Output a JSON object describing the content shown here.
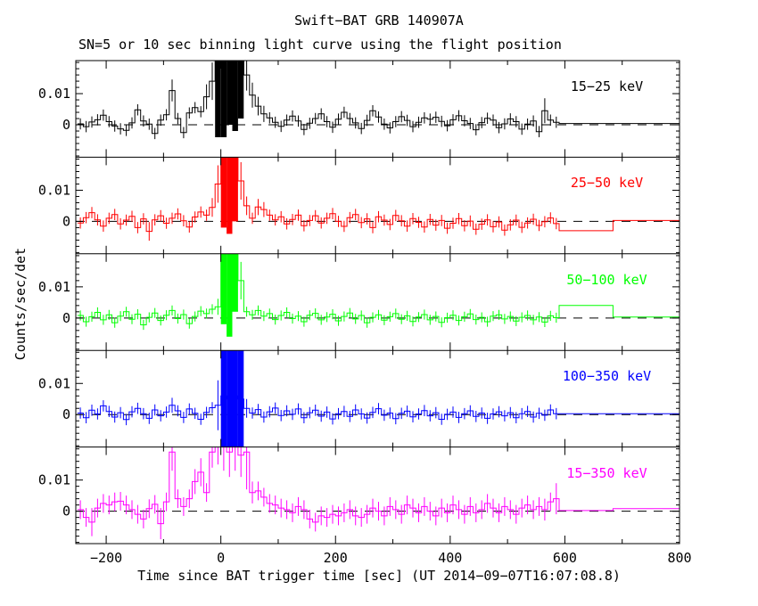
{
  "chart_data": {
    "type": "line",
    "title": "Swift−BAT GRB 140907A",
    "subtitle": "SN=5 or 10 sec binning light curve using the flight position",
    "xlabel": "Time since BAT trigger time [sec] (UT 2014−09−07T16:07:08.8)",
    "ylabel": "Counts/sec/det",
    "xlim": [
      -253,
      800
    ],
    "ylim": [
      -0.0104,
      0.0206
    ],
    "y_unit": 0.001,
    "xticks": [
      -200,
      0,
      200,
      400,
      600,
      800
    ],
    "xtick_labels": [
      "−200",
      "0",
      "200",
      "400",
      "600",
      "800"
    ],
    "xtick_minor_step": 100,
    "yticks": [
      {
        "v": 0,
        "label": "0"
      },
      {
        "v": 0.01,
        "label": "0.01"
      }
    ],
    "ytick_minor_step": 0.002,
    "grid": false,
    "legend_position": "inside-top-right-per-panel",
    "zero_line": "dashed-black",
    "panels": [
      {
        "label": "15−25 keV",
        "color": "#000000",
        "t0": -250,
        "dt": 10,
        "y": [
          0.3,
          -0.6,
          0.9,
          1.6,
          3.1,
          1.0,
          -0.4,
          -1.3,
          -1.8,
          0.6,
          4.8,
          1.2,
          0.2,
          -2.8,
          1.5,
          3.2,
          11,
          2.0,
          -2.5,
          3.8,
          5.5,
          4.2,
          9,
          14,
          30,
          30,
          30,
          30,
          30,
          16,
          9.5,
          6.0,
          3.5,
          2.2,
          0.8,
          -0.5,
          1.5,
          2.8,
          1.2,
          -1.5,
          0.5,
          2.0,
          3.5,
          1.0,
          -0.8,
          1.8,
          4.0,
          2.0,
          0.6,
          -1.2,
          1.4,
          4.5,
          2.5,
          0.2,
          -1.0,
          1.0,
          2.6,
          1.4,
          -0.6,
          0.8,
          2.2,
          1.8,
          2.4,
          1.1,
          -0.3,
          1.6,
          2.9,
          1.3,
          0.4,
          -1.6,
          0.7,
          2.1,
          1.5,
          -0.9,
          0.3,
          1.9,
          1.0,
          -1.4,
          0.2,
          1.2,
          -2.2,
          4.5,
          1.5,
          0.8
        ],
        "e_default": 1.8,
        "e_over": {
          "16": 3.5,
          "22": 4,
          "23": 6,
          "24": 34,
          "25": 34,
          "26": 30,
          "27": 32,
          "28": 28,
          "29": 5,
          "30": 4,
          "31": 3,
          "32": 2.6,
          "81": 4
        },
        "tail": [
          [
            590,
            800,
            0.4
          ]
        ]
      },
      {
        "label": "25−50 keV",
        "color": "#ff0000",
        "t0": -250,
        "dt": 10,
        "y": [
          -0.5,
          1.2,
          2.8,
          0.5,
          -1.5,
          1.0,
          2.2,
          -0.8,
          0.4,
          1.6,
          -2.0,
          0.8,
          -3.2,
          0.5,
          1.8,
          -0.6,
          1.0,
          2.4,
          0.2,
          -1.8,
          1.4,
          3.0,
          2.0,
          4.5,
          12,
          30,
          30,
          26,
          13,
          5.0,
          1.0,
          4.6,
          3.8,
          2.0,
          0.5,
          1.5,
          -0.8,
          0.6,
          2.0,
          -1.4,
          0.3,
          1.8,
          -0.5,
          1.0,
          2.5,
          0.0,
          -1.6,
          1.2,
          2.2,
          -0.4,
          0.8,
          -2.0,
          1.5,
          0.4,
          -1.0,
          1.9,
          0.2,
          -1.5,
          0.9,
          -0.3,
          -1.8,
          0.6,
          -1.2,
          0.3,
          -2.2,
          -0.6,
          0.9,
          -1.4,
          0.1,
          -2.5,
          -0.9,
          0.5,
          -1.7,
          -0.2,
          -2.8,
          -1.1,
          0.4,
          -1.9,
          -0.5,
          0.7,
          -1.3,
          -0.1,
          1.1,
          -0.7
        ],
        "e_default": 1.8,
        "e_over": {
          "12": 3,
          "23": 3,
          "24": 6,
          "25": 32,
          "26": 34,
          "27": 26,
          "28": 6,
          "29": 3,
          "31": 2.6,
          "32": 2.4
        },
        "tail": [
          [
            590,
            684,
            -3.0
          ],
          [
            684,
            800,
            0.3
          ]
        ]
      },
      {
        "label": "50−100 keV",
        "color": "#00ff00",
        "t0": -250,
        "dt": 10,
        "y": [
          0.8,
          -1.2,
          0.4,
          1.8,
          -0.6,
          1.0,
          -1.5,
          0.6,
          2.0,
          -0.4,
          1.2,
          -2.2,
          0.2,
          1.6,
          -0.8,
          0.9,
          2.4,
          -0.2,
          1.1,
          -1.8,
          0.5,
          2.2,
          1.4,
          2.8,
          3.6,
          30,
          30,
          28,
          12,
          2.0,
          1.0,
          2.4,
          0.6,
          1.4,
          -0.5,
          0.8,
          1.8,
          -0.2,
          0.6,
          -1.2,
          0.9,
          1.5,
          -0.6,
          0.3,
          1.2,
          -0.9,
          0.5,
          1.6,
          -0.3,
          0.8,
          -1.5,
          0.2,
          1.0,
          -0.7,
          0.4,
          1.4,
          -0.4,
          0.7,
          -1.1,
          0.3,
          1.1,
          -0.6,
          0.5,
          -1.4,
          0.1,
          0.9,
          -0.8,
          0.4,
          1.3,
          -0.5,
          0.2,
          -1.2,
          0.6,
          1.0,
          -0.3,
          0.5,
          -1.0,
          0.2,
          0.8,
          -0.6,
          0.3,
          -1.3,
          0.7,
          0.1
        ],
        "e_default": 1.6,
        "e_over": {
          "24": 2.6,
          "25": 32,
          "26": 36,
          "27": 26,
          "28": 6
        },
        "tail": [
          [
            590,
            684,
            4.0
          ],
          [
            684,
            800,
            0.3
          ]
        ]
      },
      {
        "label": "100−350 keV",
        "color": "#0000ff",
        "t0": -250,
        "dt": 10,
        "y": [
          0.5,
          -1.0,
          1.4,
          0.2,
          2.8,
          1.0,
          -0.8,
          0.6,
          -1.6,
          0.9,
          2.0,
          0.3,
          -1.2,
          1.5,
          -0.4,
          0.8,
          3.0,
          1.2,
          -0.9,
          1.8,
          0.4,
          -1.5,
          0.7,
          2.2,
          3.0,
          6.0,
          5.0,
          6.0,
          5.0,
          2.0,
          0.5,
          1.6,
          -0.8,
          0.9,
          2.1,
          -0.3,
          1.2,
          0.1,
          1.8,
          -1.0,
          0.6,
          1.4,
          -0.5,
          0.8,
          -1.4,
          0.3,
          1.0,
          -0.6,
          1.5,
          0.2,
          -1.1,
          0.7,
          1.9,
          -0.2,
          0.5,
          -1.3,
          0.4,
          1.1,
          -0.7,
          0.2,
          1.3,
          -0.4,
          0.6,
          -1.5,
          0.1,
          0.8,
          -0.9,
          0.3,
          1.2,
          -0.6,
          0.5,
          -1.2,
          0.2,
          0.9,
          -0.4,
          0.6,
          -1.0,
          0.3,
          1.0,
          -0.8,
          0.4,
          -0.2,
          1.5,
          0.3
        ],
        "e_default": 1.8,
        "e_over": {
          "16": 2.4,
          "24": 8,
          "25": 26,
          "26": 26,
          "27": 26,
          "28": 24,
          "29": 3
        },
        "tail": [
          [
            590,
            800,
            0.3
          ]
        ]
      },
      {
        "label": "15−350 keV",
        "color": "#ff00ff",
        "t0": -250,
        "dt": 10,
        "y": [
          0.5,
          -2.0,
          -3.5,
          1.0,
          2.5,
          2.0,
          3.0,
          3.2,
          2.0,
          0.5,
          -1.0,
          -2.5,
          0.8,
          2.2,
          -4.0,
          3.0,
          19,
          4.0,
          1.5,
          4.0,
          9.5,
          12.5,
          6.0,
          19,
          21,
          21,
          19,
          21,
          18,
          19,
          6.0,
          6.5,
          4.5,
          2.5,
          2.0,
          1.0,
          0.5,
          -0.5,
          1.5,
          0.5,
          -2.5,
          -3.5,
          -1.5,
          -2.0,
          -1.0,
          -1.5,
          -0.5,
          0.5,
          -1.5,
          -2.0,
          -1.0,
          1.0,
          0.0,
          -1.5,
          1.5,
          0.5,
          -1.0,
          2.0,
          1.0,
          -0.5,
          1.5,
          0.0,
          -1.5,
          1.0,
          -0.5,
          2.0,
          0.5,
          -1.0,
          1.5,
          -0.5,
          0.5,
          2.5,
          1.0,
          -0.5,
          1.5,
          0.5,
          -1.0,
          1.0,
          2.0,
          0.5,
          1.5,
          0.5,
          3.0,
          4.0
        ],
        "e_default": 3.0,
        "e_over": {
          "2": 4.5,
          "14": 5,
          "16": 6,
          "20": 4,
          "21": 4.5,
          "23": 5,
          "24": 6,
          "25": 8,
          "26": 8,
          "27": 8,
          "28": 7,
          "29": 12,
          "30": 3.5,
          "81": 3.5,
          "83": 5
        },
        "tail": [
          [
            590,
            684,
            0.2
          ],
          [
            684,
            800,
            0.8
          ]
        ]
      }
    ]
  }
}
